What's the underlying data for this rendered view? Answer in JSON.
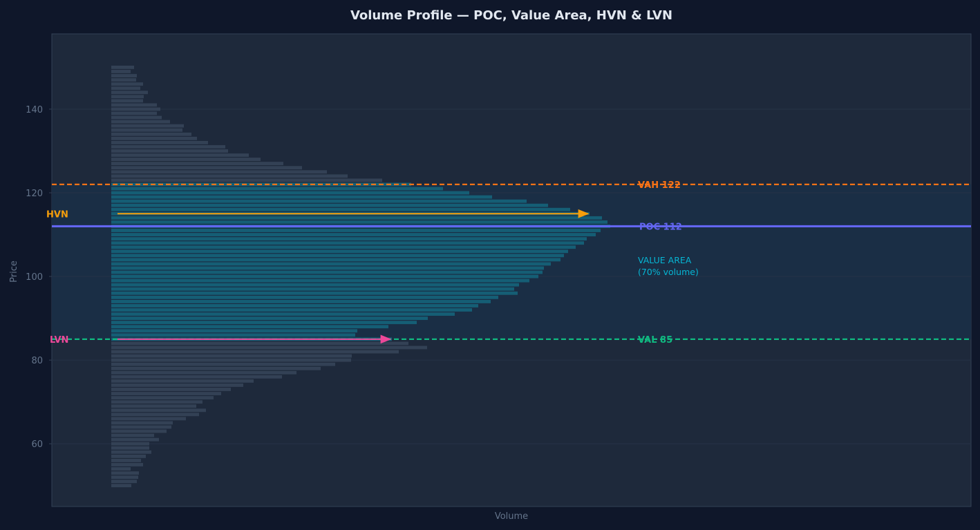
{
  "chart_data": {
    "type": "bar",
    "orientation": "horizontal",
    "title": "Volume Profile — POC, Value Area, HVN & LVN",
    "xlabel": "Volume",
    "ylabel": "Price",
    "ylim": [
      45,
      158
    ],
    "y_ticks": [
      60,
      80,
      100,
      120,
      140
    ],
    "grid": true,
    "price_step": 1,
    "prices": [
      150,
      149,
      148,
      147,
      146,
      145,
      144,
      143,
      142,
      141,
      140,
      139,
      138,
      137,
      136,
      135,
      134,
      133,
      132,
      131,
      130,
      129,
      128,
      127,
      126,
      125,
      124,
      123,
      122,
      121,
      120,
      119,
      118,
      117,
      116,
      115,
      114,
      113,
      112,
      111,
      110,
      109,
      108,
      107,
      106,
      105,
      104,
      103,
      102,
      101,
      100,
      99,
      98,
      97,
      96,
      95,
      94,
      93,
      92,
      91,
      90,
      89,
      88,
      87,
      86,
      85,
      84,
      83,
      82,
      81,
      80,
      79,
      78,
      77,
      76,
      75,
      74,
      73,
      72,
      71,
      70,
      69,
      68,
      67,
      66,
      65,
      64,
      63,
      62,
      61,
      60,
      59,
      58,
      57,
      56,
      55,
      54,
      53,
      52,
      51,
      50
    ],
    "volumes": [
      33,
      28,
      37,
      36,
      46,
      42,
      53,
      47,
      46,
      66,
      71,
      66,
      73,
      85,
      105,
      103,
      116,
      124,
      140,
      165,
      169,
      199,
      216,
      249,
      276,
      312,
      342,
      392,
      434,
      480,
      518,
      551,
      601,
      632,
      664,
      692,
      710,
      718,
      722,
      708,
      701,
      688,
      684,
      672,
      661,
      655,
      650,
      636,
      626,
      624,
      618,
      605,
      590,
      583,
      588,
      560,
      549,
      531,
      522,
      497,
      458,
      442,
      401,
      356,
      353,
      406,
      430,
      457,
      416,
      348,
      347,
      324,
      303,
      268,
      247,
      206,
      191,
      173,
      159,
      148,
      132,
      123,
      137,
      127,
      108,
      89,
      87,
      80,
      62,
      69,
      55,
      55,
      58,
      50,
      43,
      46,
      28,
      40,
      39,
      37,
      29
    ],
    "value_area": {
      "high": 122,
      "low": 85,
      "label_line1": "VALUE AREA",
      "label_line2": "(70% volume)"
    },
    "poc": {
      "price": 112,
      "label": "POC  112"
    },
    "vah": {
      "price": 122,
      "label": "VAH  122"
    },
    "val": {
      "price": 85,
      "label": "VAL  85"
    },
    "hvn": {
      "price": 115,
      "label": "HVN"
    },
    "lvn": {
      "price": 85,
      "label": "LVN"
    },
    "colors": {
      "page_bg": "#0f172a",
      "plot_bg": "#1e293b",
      "value_area_bg": "#1a2e45",
      "bar_outside": "#334155",
      "bar_inside": "#155e75",
      "poc": "#6366f1",
      "vah": "#f97316",
      "val": "#10b981",
      "hvn": "#f59e0b",
      "lvn": "#ec4899",
      "value_area_text": "#06b6d4",
      "grid": "#263347",
      "spine": "#334155"
    }
  }
}
